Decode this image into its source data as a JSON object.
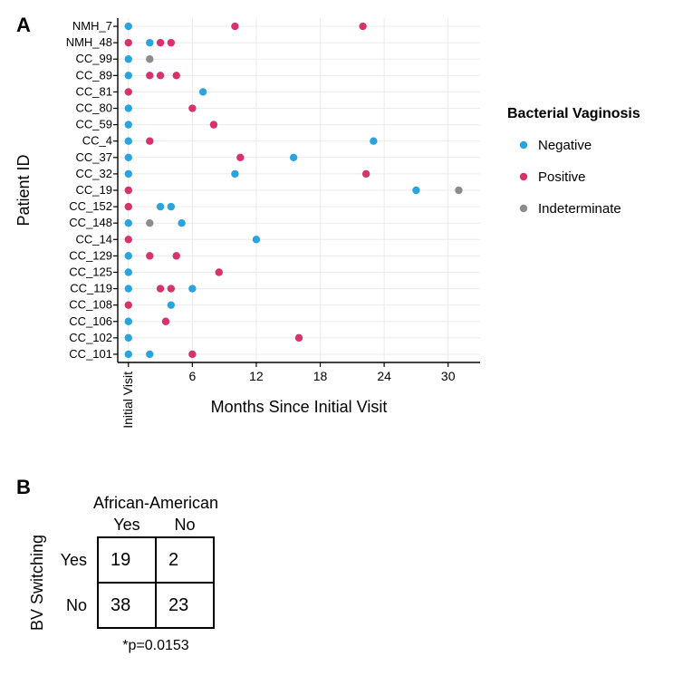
{
  "panelA": {
    "label": "A",
    "label_fontsize": 22,
    "label_fontweight": "bold",
    "type": "scatter",
    "x_axis": {
      "label": "Months Since Initial Visit",
      "label_fontsize": 18,
      "ticks": [
        0,
        6,
        12,
        18,
        24,
        30
      ],
      "tick_labels": [
        "Initial Visit",
        "6",
        "12",
        "18",
        "24",
        "30"
      ],
      "first_tick_vertical": true,
      "xlim": [
        -1,
        33
      ],
      "tick_fontsize": 14
    },
    "y_axis": {
      "label": "Patient ID",
      "label_fontsize": 18,
      "categories": [
        "NMH_7",
        "NMH_48",
        "CC_99",
        "CC_89",
        "CC_81",
        "CC_80",
        "CC_59",
        "CC_4",
        "CC_37",
        "CC_32",
        "CC_19",
        "CC_152",
        "CC_148",
        "CC_14",
        "CC_129",
        "CC_125",
        "CC_119",
        "CC_108",
        "CC_106",
        "CC_102",
        "CC_101"
      ],
      "tick_fontsize": 13
    },
    "legend": {
      "title": "Bacterial Vaginosis",
      "title_fontsize": 16,
      "title_fontweight": "bold",
      "item_fontsize": 15,
      "items": [
        {
          "label": "Negative",
          "color": "#2aa4df"
        },
        {
          "label": "Positive",
          "color": "#d6336c"
        },
        {
          "label": "Indeterminate",
          "color": "#8c8c8c"
        }
      ]
    },
    "marker_radius": 4.2,
    "grid_color": "#ebebeb",
    "axis_line_color": "#000000",
    "background_color": "#ffffff",
    "points": [
      {
        "patient": "NMH_7",
        "x": 0,
        "status": "Negative"
      },
      {
        "patient": "NMH_7",
        "x": 10,
        "status": "Positive"
      },
      {
        "patient": "NMH_7",
        "x": 22,
        "status": "Positive"
      },
      {
        "patient": "NMH_48",
        "x": 0,
        "status": "Positive"
      },
      {
        "patient": "NMH_48",
        "x": 2,
        "status": "Negative"
      },
      {
        "patient": "NMH_48",
        "x": 3,
        "status": "Positive"
      },
      {
        "patient": "NMH_48",
        "x": 4,
        "status": "Positive"
      },
      {
        "patient": "CC_99",
        "x": 0,
        "status": "Negative"
      },
      {
        "patient": "CC_99",
        "x": 2,
        "status": "Indeterminate"
      },
      {
        "patient": "CC_89",
        "x": 0,
        "status": "Negative"
      },
      {
        "patient": "CC_89",
        "x": 2,
        "status": "Positive"
      },
      {
        "patient": "CC_89",
        "x": 3,
        "status": "Positive"
      },
      {
        "patient": "CC_89",
        "x": 4.5,
        "status": "Positive"
      },
      {
        "patient": "CC_81",
        "x": 0,
        "status": "Positive"
      },
      {
        "patient": "CC_81",
        "x": 7,
        "status": "Negative"
      },
      {
        "patient": "CC_80",
        "x": 0,
        "status": "Negative"
      },
      {
        "patient": "CC_80",
        "x": 6,
        "status": "Positive"
      },
      {
        "patient": "CC_59",
        "x": 0,
        "status": "Negative"
      },
      {
        "patient": "CC_59",
        "x": 8,
        "status": "Positive"
      },
      {
        "patient": "CC_4",
        "x": 0,
        "status": "Negative"
      },
      {
        "patient": "CC_4",
        "x": 2,
        "status": "Positive"
      },
      {
        "patient": "CC_4",
        "x": 23,
        "status": "Negative"
      },
      {
        "patient": "CC_37",
        "x": 0,
        "status": "Negative"
      },
      {
        "patient": "CC_37",
        "x": 10.5,
        "status": "Positive"
      },
      {
        "patient": "CC_37",
        "x": 15.5,
        "status": "Negative"
      },
      {
        "patient": "CC_32",
        "x": 0,
        "status": "Negative"
      },
      {
        "patient": "CC_32",
        "x": 10,
        "status": "Negative"
      },
      {
        "patient": "CC_32",
        "x": 22.3,
        "status": "Positive"
      },
      {
        "patient": "CC_19",
        "x": 0,
        "status": "Positive"
      },
      {
        "patient": "CC_19",
        "x": 27,
        "status": "Negative"
      },
      {
        "patient": "CC_19",
        "x": 31,
        "status": "Indeterminate"
      },
      {
        "patient": "CC_152",
        "x": 0,
        "status": "Positive"
      },
      {
        "patient": "CC_152",
        "x": 3,
        "status": "Negative"
      },
      {
        "patient": "CC_152",
        "x": 4,
        "status": "Negative"
      },
      {
        "patient": "CC_148",
        "x": 0,
        "status": "Negative"
      },
      {
        "patient": "CC_148",
        "x": 2,
        "status": "Indeterminate"
      },
      {
        "patient": "CC_148",
        "x": 5,
        "status": "Negative"
      },
      {
        "patient": "CC_14",
        "x": 0,
        "status": "Positive"
      },
      {
        "patient": "CC_14",
        "x": 12,
        "status": "Negative"
      },
      {
        "patient": "CC_129",
        "x": 0,
        "status": "Negative"
      },
      {
        "patient": "CC_129",
        "x": 2,
        "status": "Positive"
      },
      {
        "patient": "CC_129",
        "x": 4.5,
        "status": "Positive"
      },
      {
        "patient": "CC_125",
        "x": 0,
        "status": "Negative"
      },
      {
        "patient": "CC_125",
        "x": 8.5,
        "status": "Positive"
      },
      {
        "patient": "CC_119",
        "x": 0,
        "status": "Negative"
      },
      {
        "patient": "CC_119",
        "x": 3,
        "status": "Positive"
      },
      {
        "patient": "CC_119",
        "x": 4,
        "status": "Positive"
      },
      {
        "patient": "CC_119",
        "x": 6,
        "status": "Negative"
      },
      {
        "patient": "CC_108",
        "x": 0,
        "status": "Positive"
      },
      {
        "patient": "CC_108",
        "x": 4,
        "status": "Negative"
      },
      {
        "patient": "CC_106",
        "x": 0,
        "status": "Negative"
      },
      {
        "patient": "CC_106",
        "x": 3.5,
        "status": "Positive"
      },
      {
        "patient": "CC_102",
        "x": 0,
        "status": "Negative"
      },
      {
        "patient": "CC_102",
        "x": 16,
        "status": "Positive"
      },
      {
        "patient": "CC_101",
        "x": 0,
        "status": "Negative"
      },
      {
        "patient": "CC_101",
        "x": 2,
        "status": "Negative"
      },
      {
        "patient": "CC_101",
        "x": 6,
        "status": "Positive"
      }
    ]
  },
  "panelB": {
    "label": "B",
    "label_fontsize": 22,
    "label_fontweight": "bold",
    "type": "table",
    "col_header_top": "African-American",
    "col_headers": [
      "Yes",
      "No"
    ],
    "row_header_left": "BV Switching",
    "row_headers": [
      "Yes",
      "No"
    ],
    "cells": [
      [
        19,
        2
      ],
      [
        38,
        23
      ]
    ],
    "pvalue_text": "*p=0.0153",
    "header_fontsize": 18,
    "cell_fontsize": 20,
    "pvalue_fontsize": 16,
    "border_color": "#000000",
    "border_width": 2
  }
}
